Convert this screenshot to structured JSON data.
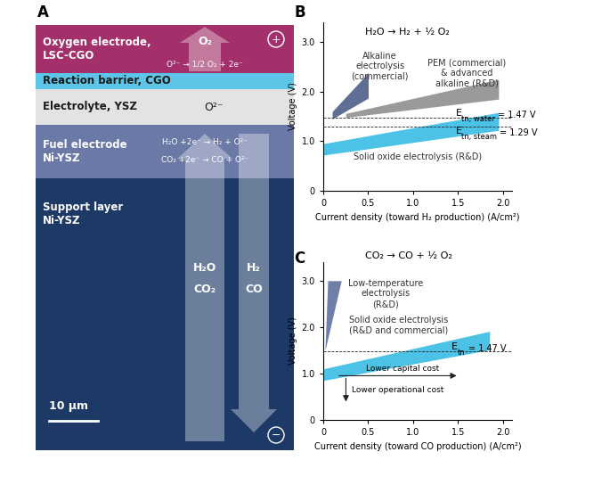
{
  "diagram": {
    "label": "A",
    "layers": [
      {
        "name": "Oxygen electrode,\nLSC-CGO",
        "color": "#a3306b",
        "product": "O₂",
        "reaction": "O²⁻ → 1/2 O₂ + 2e⁻",
        "terminal": "+"
      },
      {
        "name": "Reaction barrier, CGO",
        "color": "#5dc6e8"
      },
      {
        "name": "Electrolyte, YSZ",
        "color": "#e3e3e3",
        "ion": "O²⁻"
      },
      {
        "name": "Fuel electrode\nNi-YSZ",
        "color": "#6b79a6",
        "reactions": [
          "H₂O +2e⁻ → H₂ + O²⁻",
          "CO₂ +2e⁻ → CO + O²⁻"
        ]
      },
      {
        "name": "Support layer\nNi-YSZ",
        "color": "#1d3a66",
        "inflow": [
          "H₂O",
          "CO₂"
        ],
        "outflow": [
          "H₂",
          "CO"
        ],
        "terminal": "−"
      }
    ],
    "scale_bar": "10 µm"
  },
  "chart_data": [
    {
      "type": "band",
      "panel": "B",
      "title": "H₂O → H₂ + ½ O₂",
      "x_label": "Current density (toward H₂ production) (A/cm²)",
      "y_label": "Voltage (V)",
      "xlim": [
        0,
        2.1
      ],
      "ylim": [
        0,
        3.4
      ],
      "xticks": [
        0,
        0.5,
        {
          "value": 1,
          "label": "1.0"
        },
        1.5,
        {
          "value": 2,
          "label": "2.0"
        }
      ],
      "yticks": [
        0,
        {
          "value": 1,
          "label": "1.0"
        },
        {
          "value": 2,
          "label": "2.0"
        },
        {
          "value": 3,
          "label": "3.0"
        }
      ],
      "series": [
        {
          "name": "Alkaline\nelectrolysis\n(commercial)",
          "color": "#5f6f94",
          "x": [
            0.1,
            0.5
          ],
          "lower": [
            1.45,
            1.87
          ],
          "upper": [
            1.6,
            2.38
          ]
        },
        {
          "name": "PEM (commercial)\n& advanced\nalkaline (R&D)",
          "color": "#9a9a9a",
          "x": [
            0.25,
            1.95
          ],
          "lower": [
            1.48,
            1.85
          ],
          "upper": [
            1.56,
            2.25
          ]
        },
        {
          "name": "Solid oxide electrolysis (R&D)",
          "color": "#4cc3e6",
          "x": [
            0,
            1.95
          ],
          "lower": [
            0.72,
            1.22
          ],
          "upper": [
            0.95,
            1.58
          ]
        }
      ],
      "reference_lines": [
        {
          "symbol": "E",
          "subscript": "tn, water",
          "label": "= 1.47 V",
          "value": 1.47
        },
        {
          "symbol": "E",
          "subscript": "tn, steam",
          "label": "= 1.29 V",
          "value": 1.29
        }
      ]
    },
    {
      "type": "band",
      "panel": "C",
      "title": "CO₂ → CO + ½ O₂",
      "x_label": "Current density (toward CO production) (A/cm²)",
      "y_label": "Voltage (V)",
      "xlim": [
        0,
        2.1
      ],
      "ylim": [
        0,
        3.4
      ],
      "xticks": [
        0,
        0.5,
        {
          "value": 1,
          "label": "1.0"
        },
        1.5,
        {
          "value": 2,
          "label": "2.0"
        }
      ],
      "yticks": [
        0,
        {
          "value": 1,
          "label": "1.0"
        },
        {
          "value": 2,
          "label": "2.0"
        },
        {
          "value": 3,
          "label": "3.0"
        }
      ],
      "series": [
        {
          "name": "Low-temperature\nelectrolysis\n(R&D)",
          "color": "#6f7fa8",
          "x": [
            0.02,
            0.05,
            0.2
          ],
          "lower": [
            1.5,
            1.75,
            3.0
          ],
          "upper": [
            1.55,
            3.0,
            3.0
          ]
        },
        {
          "name": "Solid oxide electrolysis\n(R&D and commercial)",
          "color": "#4cc3e6",
          "x": [
            0,
            1.85
          ],
          "lower": [
            0.85,
            1.51
          ],
          "upper": [
            1.1,
            1.91
          ]
        }
      ],
      "reference_lines": [
        {
          "symbol": "E",
          "subscript": "tn",
          "label": "= 1.47 V",
          "value": 1.47
        }
      ],
      "annotations": [
        "Lower capital cost",
        "Lower operational cost"
      ]
    }
  ]
}
